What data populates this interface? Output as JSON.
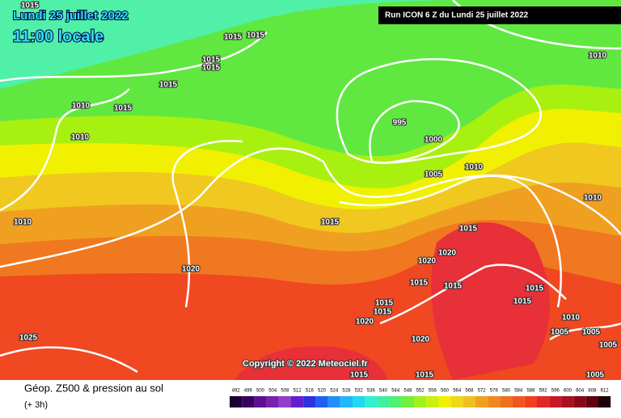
{
  "header": {
    "date": "Lundi 25 juillet 2022",
    "time": "11:00 locale",
    "run": "Run ICON 6 Z du Lundi 25 juillet 2022"
  },
  "map": {
    "isobar_labels": [
      "1015",
      "1015",
      "1015",
      "1015",
      "1015",
      "1015",
      "1010",
      "1015",
      "1010",
      "995",
      "1000",
      "1005",
      "1010",
      "1010",
      "1010",
      "1010",
      "1015",
      "1015",
      "1020",
      "1020",
      "1020",
      "1015",
      "1015",
      "1015",
      "1015",
      "1015",
      "1015",
      "1020",
      "1010",
      "1005",
      "1005",
      "1005",
      "1025",
      "1020",
      "1015",
      "1015",
      "1005"
    ],
    "copyright": "Copyright © 2022 Meteociel.fr"
  },
  "legend": {
    "title": "Géop. Z500 & pression au sol",
    "subtitle": "(+ 3h)",
    "levels": [
      492,
      496,
      500,
      504,
      508,
      512,
      516,
      520,
      524,
      528,
      532,
      536,
      540,
      544,
      548,
      552,
      556,
      560,
      564,
      568,
      572,
      576,
      580,
      584,
      588,
      592,
      596,
      600,
      604,
      608,
      612
    ],
    "colors": [
      "#1c0030",
      "#3a0060",
      "#5a1090",
      "#7a20b0",
      "#9040c8",
      "#6020d0",
      "#3030e0",
      "#2060f0",
      "#2090f8",
      "#20b8f8",
      "#20d8f0",
      "#30f0d0",
      "#40f0a0",
      "#50f070",
      "#70f040",
      "#a0f020",
      "#c8f010",
      "#f0f000",
      "#f0d818",
      "#f0c020",
      "#f0a020",
      "#f08820",
      "#f07020",
      "#f05820",
      "#f04020",
      "#e02828",
      "#c81828",
      "#a81020",
      "#880818",
      "#600010",
      "#200008"
    ]
  }
}
